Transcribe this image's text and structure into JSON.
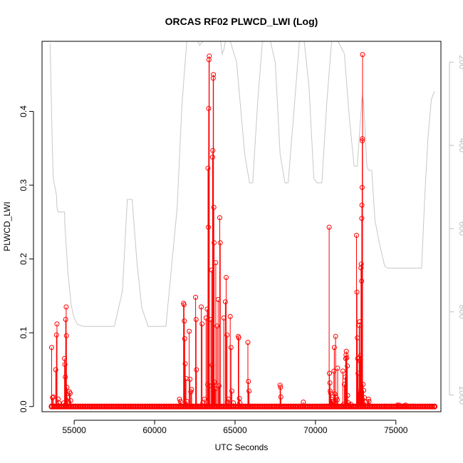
{
  "chart_data": {
    "type": "scatter",
    "title": "ORCAS RF02 PLWCD_LWI (Log)",
    "xlabel": "UTC Seconds",
    "ylabel": "PLWCD_LWI",
    "xlim": [
      53000,
      77800
    ],
    "ylim": [
      -0.007,
      0.495
    ],
    "x_ticks": [
      55000,
      60000,
      65000,
      70000,
      75000
    ],
    "y_ticks": [
      0.0,
      0.1,
      0.2,
      0.3,
      0.4
    ],
    "y_tick_labels": [
      "0.0",
      "0.1",
      "0.2",
      "0.3",
      "0.4"
    ],
    "right_axis": {
      "reversed": true,
      "lim": [
        1040,
        150
      ],
      "ticks": [
        200,
        400,
        600,
        800,
        1000
      ],
      "tick_labels": [
        "200",
        "400",
        "600",
        "800",
        "1000"
      ],
      "color": "#bfbfbf"
    },
    "series": [
      {
        "role": "plwcd_lwi",
        "color": "#ff0000",
        "style": "points-with-vertical-lines",
        "baseline_range": [
          53600,
          77400
        ],
        "points": [
          [
            53600,
            0.08
          ],
          [
            53650,
            0.012
          ],
          [
            53700,
            0.013
          ],
          [
            53850,
            0.05
          ],
          [
            53900,
            0.097
          ],
          [
            53930,
            0.112
          ],
          [
            54000,
            0.01
          ],
          [
            54050,
            0.005
          ],
          [
            54350,
            0.005
          ],
          [
            54400,
            0.065
          ],
          [
            54420,
            0.057
          ],
          [
            54450,
            0.04
          ],
          [
            54470,
            0.118
          ],
          [
            54500,
            0.135
          ],
          [
            54520,
            0.096
          ],
          [
            54550,
            0.026
          ],
          [
            54600,
            0.012
          ],
          [
            54700,
            0.02
          ],
          [
            54750,
            0.018
          ],
          [
            54780,
            0.008
          ],
          [
            61550,
            0.01
          ],
          [
            61600,
            0.007
          ],
          [
            61800,
            0.14
          ],
          [
            61830,
            0.138
          ],
          [
            61850,
            0.116
          ],
          [
            61870,
            0.092
          ],
          [
            61900,
            0.058
          ],
          [
            61950,
            0.038
          ],
          [
            62000,
            0.007
          ],
          [
            62150,
            0.102
          ],
          [
            62200,
            0.037
          ],
          [
            62250,
            0.02
          ],
          [
            62300,
            0.023
          ],
          [
            62550,
            0.148
          ],
          [
            62580,
            0.118
          ],
          [
            62600,
            0.05
          ],
          [
            62900,
            0.135
          ],
          [
            62950,
            0.112
          ],
          [
            63000,
            0.005
          ],
          [
            63100,
            0.01
          ],
          [
            63200,
            0.12
          ],
          [
            63270,
            0.132
          ],
          [
            63300,
            0.03
          ],
          [
            63320,
            0.323
          ],
          [
            63340,
            0.243
          ],
          [
            63360,
            0.404
          ],
          [
            63380,
            0.47
          ],
          [
            63400,
            0.475
          ],
          [
            63420,
            0.028
          ],
          [
            63500,
            0.118
          ],
          [
            63550,
            0.185
          ],
          [
            63570,
            0.056
          ],
          [
            63600,
            0.338
          ],
          [
            63620,
            0.347
          ],
          [
            63640,
            0.445
          ],
          [
            63660,
            0.45
          ],
          [
            63680,
            0.27
          ],
          [
            63700,
            0.222
          ],
          [
            63730,
            0.033
          ],
          [
            63760,
            0.024
          ],
          [
            63800,
            0.195
          ],
          [
            63880,
            0.109
          ],
          [
            63950,
            0.145
          ],
          [
            64000,
            0.028
          ],
          [
            64050,
            0.256
          ],
          [
            64080,
            0.222
          ],
          [
            64300,
            0.12
          ],
          [
            64400,
            0.142
          ],
          [
            64450,
            0.175
          ],
          [
            64500,
            0.097
          ],
          [
            64520,
            0.006
          ],
          [
            64600,
            0.01
          ],
          [
            64700,
            0.122
          ],
          [
            64750,
            0.08
          ],
          [
            64800,
            0.021
          ],
          [
            64900,
            0.005
          ],
          [
            65200,
            0.095
          ],
          [
            65230,
            0.093
          ],
          [
            65270,
            0.011
          ],
          [
            65300,
            0.005
          ],
          [
            65800,
            0.087
          ],
          [
            65830,
            0.034
          ],
          [
            65870,
            0.021
          ],
          [
            67800,
            0.029
          ],
          [
            67830,
            0.026
          ],
          [
            67850,
            0.013
          ],
          [
            69250,
            0.006
          ],
          [
            70850,
            0.243
          ],
          [
            70870,
            0.045
          ],
          [
            70900,
            0.032
          ],
          [
            70920,
            0.021
          ],
          [
            70950,
            0.018
          ],
          [
            71000,
            0.01
          ],
          [
            71050,
            0.007
          ],
          [
            71100,
            0.007
          ],
          [
            71150,
            0.048
          ],
          [
            71170,
            0.08
          ],
          [
            71200,
            0.017
          ],
          [
            71250,
            0.095
          ],
          [
            71300,
            0.012
          ],
          [
            71350,
            0.009
          ],
          [
            71380,
            0.052
          ],
          [
            71700,
            0.048
          ],
          [
            71750,
            0.003
          ],
          [
            71800,
            0.03
          ],
          [
            71850,
            0.04
          ],
          [
            71880,
            0.065
          ],
          [
            71900,
            0.07
          ],
          [
            71920,
            0.075
          ],
          [
            71950,
            0.066
          ],
          [
            71980,
            0.055
          ],
          [
            72000,
            0.015
          ],
          [
            72050,
            0.005
          ],
          [
            72100,
            0.002
          ],
          [
            72200,
            0.003
          ],
          [
            72550,
            0.232
          ],
          [
            72580,
            0.155
          ],
          [
            72600,
            0.093
          ],
          [
            72620,
            0.065
          ],
          [
            72650,
            0.045
          ],
          [
            72680,
            0.02
          ],
          [
            72700,
            0.018
          ],
          [
            72720,
            0.11
          ],
          [
            72750,
            0.115
          ],
          [
            72770,
            0.062
          ],
          [
            72800,
            0.069
          ],
          [
            72830,
            0.188
          ],
          [
            72850,
            0.193
          ],
          [
            72870,
            0.17
          ],
          [
            72880,
            0.255
          ],
          [
            72890,
            0.273
          ],
          [
            72900,
            0.297
          ],
          [
            72910,
            0.36
          ],
          [
            72920,
            0.363
          ],
          [
            72930,
            0.477
          ],
          [
            72960,
            0.03
          ],
          [
            73000,
            0.022
          ],
          [
            73050,
            0.012
          ],
          [
            73100,
            0.006
          ],
          [
            73300,
            0.01
          ],
          [
            73330,
            0.007
          ],
          [
            75100,
            0.002
          ],
          [
            75200,
            0.002
          ],
          [
            75500,
            0.001
          ],
          [
            75600,
            0.002
          ]
        ]
      },
      {
        "role": "right-axis-trace",
        "color": "#c8c8c8",
        "axis": "right",
        "points": [
          [
            53500,
            155
          ],
          [
            53550,
            240
          ],
          [
            53600,
            330
          ],
          [
            53650,
            420
          ],
          [
            53700,
            480
          ],
          [
            53800,
            500
          ],
          [
            53900,
            520
          ],
          [
            53930,
            550
          ],
          [
            54000,
            560
          ],
          [
            54400,
            560
          ],
          [
            54420,
            590
          ],
          [
            54500,
            640
          ],
          [
            54600,
            700
          ],
          [
            54700,
            740
          ],
          [
            54800,
            780
          ],
          [
            54900,
            800
          ],
          [
            55000,
            815
          ],
          [
            55200,
            830
          ],
          [
            55600,
            835
          ],
          [
            56500,
            835
          ],
          [
            57500,
            835
          ],
          [
            58000,
            750
          ],
          [
            58300,
            530
          ],
          [
            58600,
            530
          ],
          [
            58900,
            680
          ],
          [
            59200,
            790
          ],
          [
            59600,
            835
          ],
          [
            60700,
            835
          ],
          [
            61400,
            550
          ],
          [
            61700,
            300
          ],
          [
            62000,
            150
          ],
          [
            62300,
            150
          ],
          [
            62700,
            150
          ],
          [
            62800,
            160
          ],
          [
            63000,
            150
          ],
          [
            63800,
            150
          ],
          [
            64000,
            150
          ],
          [
            64100,
            150
          ],
          [
            64200,
            180
          ],
          [
            64300,
            170
          ],
          [
            64400,
            150
          ],
          [
            64700,
            150
          ],
          [
            65100,
            200
          ],
          [
            65600,
            420
          ],
          [
            65900,
            490
          ],
          [
            66100,
            490
          ],
          [
            66400,
            300
          ],
          [
            66700,
            150
          ],
          [
            67200,
            150
          ],
          [
            67500,
            200
          ],
          [
            67800,
            420
          ],
          [
            68100,
            490
          ],
          [
            68300,
            490
          ],
          [
            68700,
            300
          ],
          [
            69000,
            150
          ],
          [
            69300,
            150
          ],
          [
            69600,
            260
          ],
          [
            69900,
            480
          ],
          [
            70100,
            490
          ],
          [
            70400,
            490
          ],
          [
            70700,
            300
          ],
          [
            71000,
            150
          ],
          [
            71400,
            150
          ],
          [
            71800,
            180
          ],
          [
            72100,
            330
          ],
          [
            72400,
            450
          ],
          [
            72600,
            450
          ],
          [
            72900,
            280
          ],
          [
            73000,
            300
          ],
          [
            73200,
            450
          ],
          [
            73300,
            460
          ],
          [
            73500,
            460
          ],
          [
            73700,
            580
          ],
          [
            74000,
            640
          ],
          [
            74300,
            690
          ],
          [
            74500,
            695
          ],
          [
            75500,
            695
          ],
          [
            76600,
            695
          ],
          [
            76800,
            520
          ],
          [
            77000,
            380
          ],
          [
            77200,
            290
          ],
          [
            77400,
            270
          ]
        ]
      }
    ]
  }
}
